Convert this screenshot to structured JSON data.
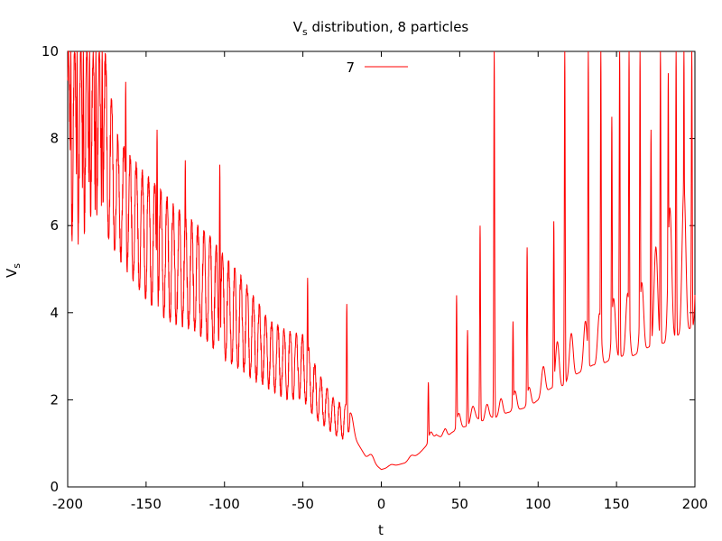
{
  "chart_data": {
    "type": "line",
    "title": {
      "prefix": "V",
      "subscript": "s",
      "suffix": " distribution, 8 particles"
    },
    "xlabel": "t",
    "ylabel": {
      "main": "V",
      "subscript": "s"
    },
    "xlim": [
      -200,
      200
    ],
    "ylim": [
      0,
      10
    ],
    "x_ticks": [
      -200,
      -150,
      -100,
      -50,
      0,
      50,
      100,
      150,
      200
    ],
    "y_ticks": [
      0,
      2,
      4,
      6,
      8,
      10
    ],
    "x_tick_labels": [
      "-200",
      "-150",
      "-100",
      "-50",
      "0",
      "50",
      "100",
      "150",
      "200"
    ],
    "y_tick_labels": [
      "0",
      "2",
      "4",
      "6",
      "8",
      "10"
    ],
    "grid": false,
    "legend_position": "top-center",
    "series": [
      {
        "name": "7",
        "color": "#ff0000",
        "x_range": [
          -200,
          200
        ],
        "num_points": 4000,
        "lower_envelope": {
          "x": [
            -200,
            -190,
            -180,
            -175,
            -170,
            -160,
            -150,
            -140,
            -130,
            -120,
            -110,
            -100,
            -90,
            -80,
            -70,
            -60,
            -50,
            -45,
            -40,
            -30,
            -25,
            -22,
            -20,
            -15,
            -10,
            -5,
            0,
            5,
            10,
            15,
            20,
            25,
            30,
            35,
            40,
            45,
            50,
            55,
            60,
            65,
            70,
            75,
            80,
            85,
            90,
            95,
            100,
            105,
            110,
            115,
            120,
            125,
            130,
            135,
            140,
            145,
            150,
            155,
            160,
            165,
            170,
            175,
            180,
            185,
            190,
            195,
            200
          ],
          "y": [
            5.4,
            5.4,
            5.6,
            5.8,
            5.4,
            4.8,
            4.3,
            3.9,
            3.7,
            3.6,
            3.3,
            2.9,
            2.7,
            2.4,
            2.2,
            2.0,
            2.0,
            1.7,
            1.5,
            1.2,
            1.1,
            1.2,
            1.3,
            1.0,
            0.7,
            0.55,
            0.4,
            0.45,
            0.5,
            0.55,
            0.65,
            0.8,
            1.0,
            1.2,
            1.1,
            1.25,
            1.35,
            1.4,
            1.6,
            1.5,
            1.6,
            1.6,
            1.7,
            1.75,
            1.8,
            1.85,
            2.0,
            2.2,
            2.3,
            2.3,
            2.5,
            2.6,
            2.7,
            2.8,
            2.8,
            2.9,
            3.0,
            3.0,
            3.0,
            3.1,
            3.2,
            3.3,
            3.3,
            3.4,
            3.5,
            3.6,
            3.7
          ]
        },
        "upper_envelope": {
          "x": [
            -200,
            -190,
            -180,
            -175,
            -170,
            -160,
            -150,
            -140,
            -130,
            -120,
            -110,
            -100,
            -90,
            -80,
            -70,
            -60,
            -50,
            -45,
            -40,
            -30,
            -25,
            -22,
            -20,
            -15,
            -10,
            -5,
            0,
            5,
            10,
            15,
            20,
            25,
            30,
            35,
            40,
            45,
            50,
            55,
            60,
            65,
            70,
            75,
            80,
            85,
            90,
            95,
            100,
            105,
            110,
            115,
            120,
            125,
            130,
            135,
            140,
            145,
            150,
            155,
            160,
            165,
            170,
            175,
            180,
            185,
            190,
            195,
            200
          ],
          "y": [
            10.0,
            10.0,
            10.0,
            10.0,
            8.2,
            7.6,
            7.2,
            6.8,
            6.4,
            6.1,
            5.8,
            5.3,
            4.9,
            4.3,
            3.8,
            3.6,
            3.5,
            3.1,
            2.6,
            2.0,
            1.9,
            1.9,
            1.8,
            1.1,
            0.85,
            0.7,
            0.5,
            0.5,
            0.55,
            0.6,
            0.75,
            0.9,
            1.2,
            1.4,
            1.3,
            1.6,
            1.7,
            1.75,
            1.9,
            1.8,
            2.0,
            2.0,
            2.1,
            2.2,
            2.2,
            2.3,
            2.5,
            2.9,
            3.2,
            3.5,
            3.5,
            3.6,
            3.8,
            3.9,
            4.0,
            4.2,
            4.4,
            4.4,
            4.5,
            4.6,
            5.0,
            5.5,
            6.0,
            6.5,
            6.8,
            7.0,
            7.0
          ]
        },
        "spikes": [
          {
            "x": -198,
            "y": 10.0
          },
          {
            "x": -194,
            "y": 10.0
          },
          {
            "x": -190,
            "y": 10.0
          },
          {
            "x": -186,
            "y": 10.0
          },
          {
            "x": -182,
            "y": 10.0
          },
          {
            "x": -178,
            "y": 10.0
          },
          {
            "x": -163,
            "y": 9.3
          },
          {
            "x": -143,
            "y": 8.2
          },
          {
            "x": -125,
            "y": 7.5
          },
          {
            "x": -103,
            "y": 7.4
          },
          {
            "x": -47,
            "y": 4.8
          },
          {
            "x": -22,
            "y": 4.2
          },
          {
            "x": 30,
            "y": 2.4
          },
          {
            "x": 48,
            "y": 4.4
          },
          {
            "x": 55,
            "y": 3.6
          },
          {
            "x": 63,
            "y": 6.0
          },
          {
            "x": 72,
            "y": 10.0
          },
          {
            "x": 84,
            "y": 3.8
          },
          {
            "x": 93,
            "y": 5.5
          },
          {
            "x": 110,
            "y": 6.1
          },
          {
            "x": 117,
            "y": 10.0
          },
          {
            "x": 132,
            "y": 10.0
          },
          {
            "x": 140,
            "y": 10.0
          },
          {
            "x": 147,
            "y": 8.5
          },
          {
            "x": 152,
            "y": 10.0
          },
          {
            "x": 158,
            "y": 10.0
          },
          {
            "x": 165,
            "y": 10.0
          },
          {
            "x": 172,
            "y": 8.2
          },
          {
            "x": 178,
            "y": 10.0
          },
          {
            "x": 183,
            "y": 9.5
          },
          {
            "x": 188,
            "y": 10.0
          },
          {
            "x": 193,
            "y": 10.0
          },
          {
            "x": 198,
            "y": 10.0
          }
        ]
      }
    ]
  }
}
